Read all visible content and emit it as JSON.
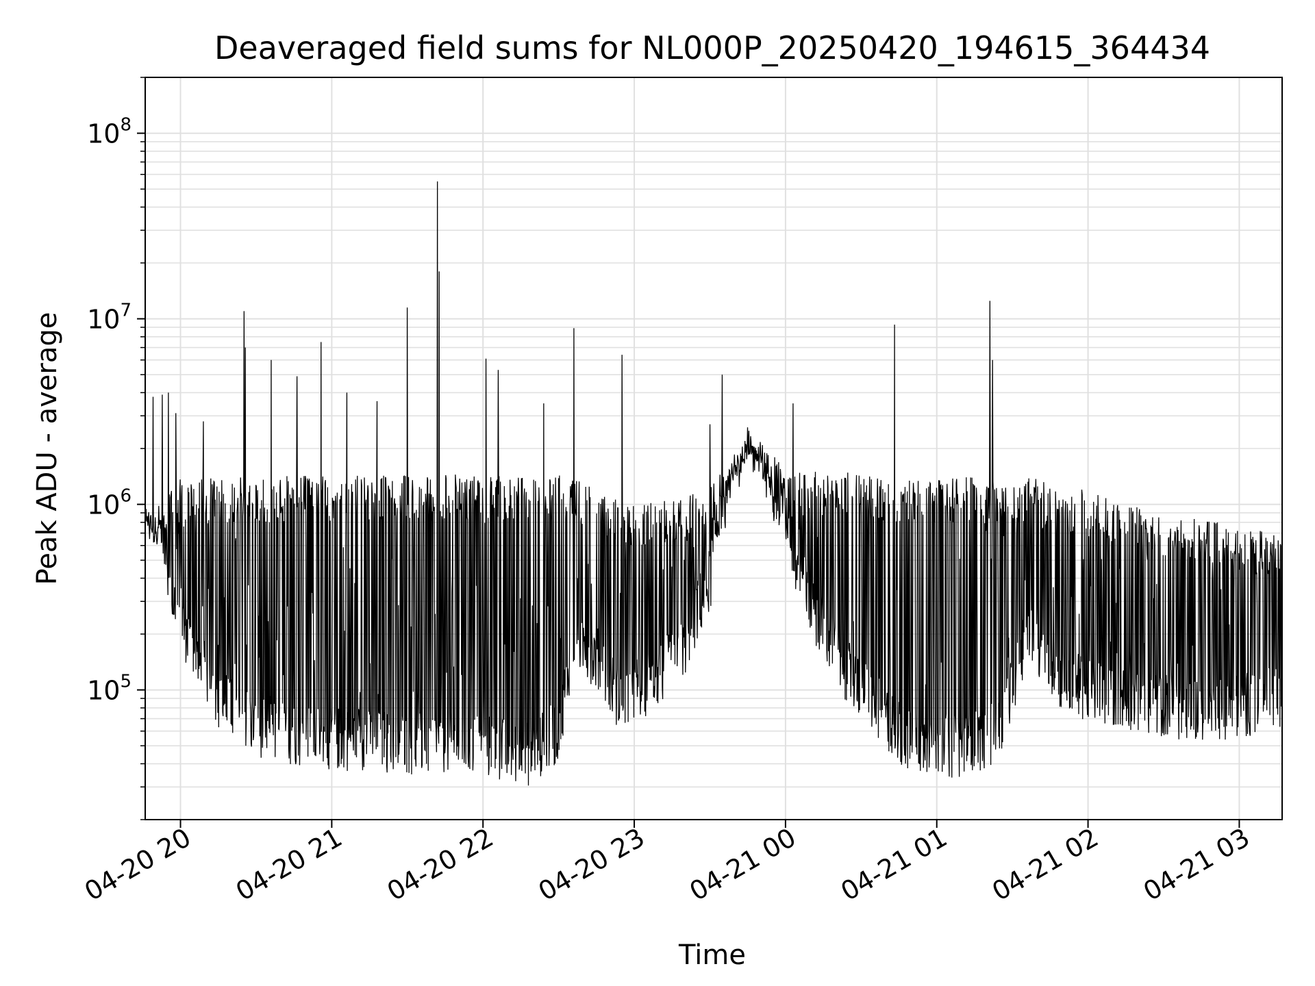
{
  "chart_data": {
    "type": "line",
    "title": "Deaveraged field sums for NL000P_20250420_194615_364434",
    "xlabel": "Time",
    "ylabel": "Peak ADU - average",
    "yscale": "log",
    "ylim": [
      20000,
      200000000
    ],
    "xlim": [
      "04-20 19:46",
      "04-21 03:17"
    ],
    "grid": true,
    "line_color": "#000000",
    "grid_color": "#e0e0e0",
    "x_ticks": [
      "04-20 20",
      "04-20 21",
      "04-20 22",
      "04-20 23",
      "04-21 00",
      "04-21 01",
      "04-21 02",
      "04-21 03"
    ],
    "y_ticks": [
      {
        "base": "10",
        "exp": "5",
        "value": 100000
      },
      {
        "base": "10",
        "exp": "6",
        "value": 1000000
      },
      {
        "base": "10",
        "exp": "7",
        "value": 10000000
      },
      {
        "base": "10",
        "exp": "8",
        "value": 100000000
      }
    ],
    "series": [
      {
        "baseline": {
          "x_hours": [
            19.77,
            19.9,
            20.1,
            20.3,
            20.6,
            21.0,
            21.5,
            22.0,
            22.3,
            22.5,
            22.6,
            22.75,
            22.9,
            23.1,
            23.3,
            23.5,
            23.65,
            23.75,
            23.85,
            24.0,
            24.2,
            24.4,
            24.6,
            24.8,
            25.0,
            25.2,
            25.4,
            25.6,
            25.8,
            26.0,
            26.3,
            26.6,
            26.9,
            27.28
          ],
          "values": [
            800000,
            400000,
            150000,
            80000,
            60000,
            55000,
            52000,
            50000,
            45000,
            60000,
            200000,
            150000,
            90000,
            110000,
            150000,
            400000,
            1200000,
            1800000,
            1400000,
            600000,
            250000,
            130000,
            80000,
            55000,
            50000,
            50000,
            60000,
            200000,
            120000,
            100000,
            90000,
            80000,
            80000,
            90000
          ]
        },
        "envelope": {
          "x_hours": [
            19.77,
            20.0,
            20.5,
            21.0,
            21.5,
            22.0,
            22.5,
            22.6,
            22.8,
            23.0,
            23.3,
            23.6,
            23.75,
            23.9,
            24.1,
            24.4,
            24.8,
            25.2,
            25.4,
            25.6,
            26.0,
            26.4,
            26.8,
            27.28
          ],
          "values": [
            900000,
            1400000,
            1400000,
            1450000,
            1450000,
            1450000,
            1450000,
            1500000,
            1100000,
            1050000,
            1100000,
            1500000,
            2500000,
            1800000,
            1500000,
            1500000,
            1400000,
            1400000,
            1400000,
            1400000,
            1200000,
            950000,
            820000,
            700000
          ]
        },
        "spikes": [
          {
            "x": 19.82,
            "y": 3800000
          },
          {
            "x": 19.88,
            "y": 3900000
          },
          {
            "x": 19.92,
            "y": 4000000
          },
          {
            "x": 19.97,
            "y": 3100000
          },
          {
            "x": 20.15,
            "y": 2800000
          },
          {
            "x": 20.42,
            "y": 11000000
          },
          {
            "x": 20.43,
            "y": 7000000
          },
          {
            "x": 20.6,
            "y": 6000000
          },
          {
            "x": 20.77,
            "y": 4900000
          },
          {
            "x": 20.93,
            "y": 7500000
          },
          {
            "x": 21.1,
            "y": 4000000
          },
          {
            "x": 21.3,
            "y": 3600000
          },
          {
            "x": 21.5,
            "y": 11500000
          },
          {
            "x": 21.7,
            "y": 55000000
          },
          {
            "x": 21.71,
            "y": 18000000
          },
          {
            "x": 22.02,
            "y": 6100000
          },
          {
            "x": 22.1,
            "y": 5300000
          },
          {
            "x": 22.4,
            "y": 3500000
          },
          {
            "x": 22.6,
            "y": 8900000
          },
          {
            "x": 22.92,
            "y": 6400000
          },
          {
            "x": 23.5,
            "y": 2700000
          },
          {
            "x": 23.58,
            "y": 5000000
          },
          {
            "x": 24.05,
            "y": 3500000
          },
          {
            "x": 24.72,
            "y": 9300000
          },
          {
            "x": 25.35,
            "y": 12500000
          },
          {
            "x": 25.37,
            "y": 6000000
          }
        ],
        "floor_min": 30000
      }
    ]
  }
}
